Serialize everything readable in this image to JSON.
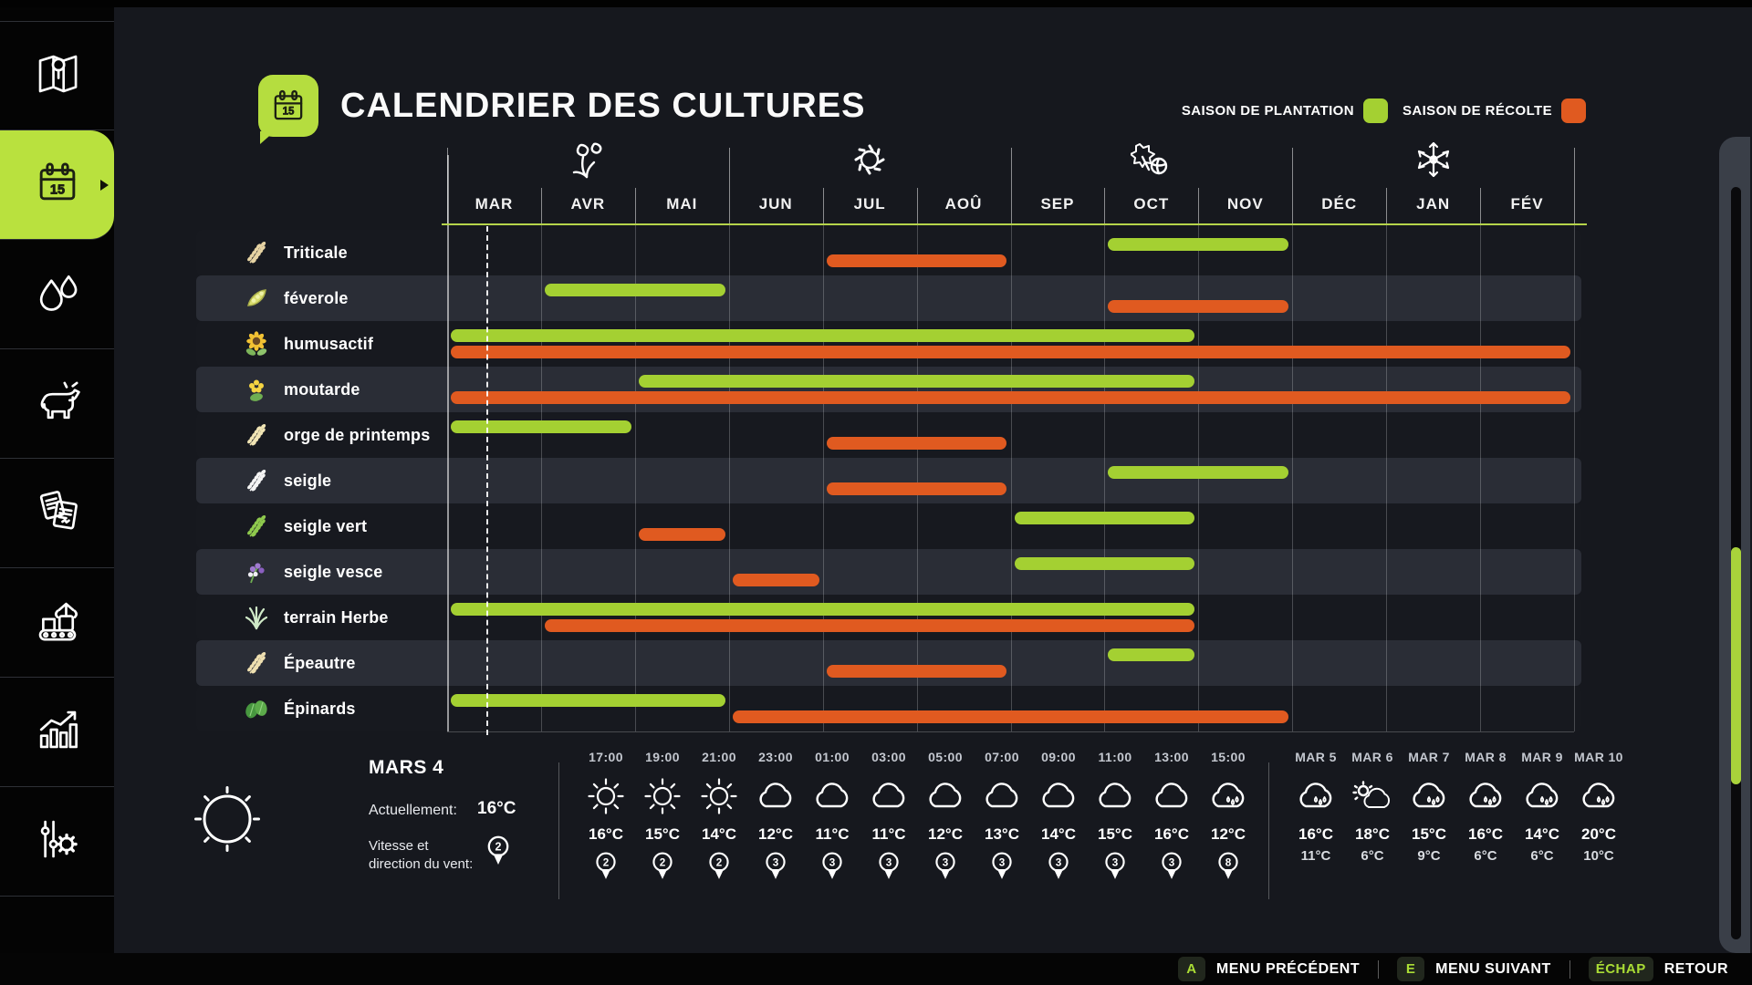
{
  "header": {
    "title": "CALENDRIER DES CULTURES",
    "legend": [
      {
        "name": "planting-season",
        "label": "SAISON DE PLANTATION",
        "color": "#a4d032"
      },
      {
        "name": "harvest-season",
        "label": "SAISON DE RÉCOLTE",
        "color": "#e05a20"
      }
    ]
  },
  "sidebar": {
    "items": [
      {
        "name": "map",
        "icon": "map-icon",
        "active": false
      },
      {
        "name": "crop-calendar",
        "icon": "calendar-icon",
        "active": true
      },
      {
        "name": "precipitation",
        "icon": "water-drops-icon",
        "active": false
      },
      {
        "name": "animals",
        "icon": "cow-icon",
        "active": false
      },
      {
        "name": "contracts",
        "icon": "contracts-icon",
        "active": false
      },
      {
        "name": "production",
        "icon": "production-icon",
        "active": false
      },
      {
        "name": "statistics",
        "icon": "statistics-icon",
        "active": false
      },
      {
        "name": "settings",
        "icon": "sliders-gear-icon",
        "active": false
      }
    ]
  },
  "chart_data": {
    "type": "gantt",
    "title": "CALENDRIER DES CULTURES",
    "months": [
      "MAR",
      "AVR",
      "MAI",
      "JUN",
      "JUL",
      "AOÛ",
      "SEP",
      "OCT",
      "NOV",
      "DÉC",
      "JAN",
      "FÉV"
    ],
    "seasons": [
      {
        "icon": "spring-flowers-icon",
        "month": 2
      },
      {
        "icon": "summer-sun-icon",
        "month": 5
      },
      {
        "icon": "autumn-leaves-icon",
        "month": 8
      },
      {
        "icon": "winter-snowflake-icon",
        "month": 11
      }
    ],
    "current_date_marker": {
      "month": 1,
      "fraction": 0.42
    },
    "plant_color": "#a4d032",
    "harvest_color": "#e05a20",
    "crops": [
      {
        "name": "Triticale",
        "icon": "wheat",
        "icon_color": "#e6d3a3",
        "plant": [
          8,
          9
        ],
        "harvest": [
          5,
          6
        ]
      },
      {
        "name": "féverole",
        "icon": "bean-pod",
        "icon_color": "#d9dd6e",
        "plant": [
          2,
          3
        ],
        "harvest": [
          8,
          9
        ]
      },
      {
        "name": "humusactif",
        "icon": "sunflower",
        "icon_color": "#f2c233",
        "plant": [
          1,
          8
        ],
        "harvest": [
          1,
          12
        ]
      },
      {
        "name": "moutarde",
        "icon": "mustard-flower",
        "icon_color": "#f5d442",
        "plant": [
          3,
          8
        ],
        "harvest": [
          1,
          12
        ]
      },
      {
        "name": "orge de printemps",
        "icon": "wheat",
        "icon_color": "#f0e4b4",
        "plant": [
          1,
          2
        ],
        "harvest": [
          5,
          6
        ]
      },
      {
        "name": "seigle",
        "icon": "wheat",
        "icon_color": "#f4f4f4",
        "plant": [
          8,
          9
        ],
        "harvest": [
          5,
          6
        ]
      },
      {
        "name": "seigle vert",
        "icon": "wheat",
        "icon_color": "#8ec94d",
        "plant": [
          7,
          8
        ],
        "harvest": [
          3,
          3
        ]
      },
      {
        "name": "seigle vesce",
        "icon": "vetch-flower",
        "icon_color": "#a07ad0",
        "plant": [
          7,
          8
        ],
        "harvest": [
          4,
          4
        ]
      },
      {
        "name": "terrain Herbe",
        "icon": "grass",
        "icon_color": "#cfe9c7",
        "plant": [
          1,
          8
        ],
        "harvest": [
          2,
          8
        ]
      },
      {
        "name": "Épeautre",
        "icon": "wheat",
        "icon_color": "#eedfb0",
        "plant": [
          8,
          8
        ],
        "harvest": [
          5,
          6
        ]
      },
      {
        "name": "Épinards",
        "icon": "spinach-leaves",
        "icon_color": "#47973f",
        "plant": [
          1,
          3
        ],
        "harvest": [
          4,
          9
        ]
      }
    ]
  },
  "weather": {
    "current": {
      "date": "MARS 4",
      "icon": "sun-icon",
      "now_label": "Actuellement:",
      "temperature": "16°C",
      "wind_label_line1": "Vitesse et",
      "wind_label_line2": "direction du vent:",
      "wind": "2"
    },
    "hourly": [
      {
        "time": "17:00",
        "icon": "sun",
        "temp": "16°C",
        "wind": "2"
      },
      {
        "time": "19:00",
        "icon": "sun",
        "temp": "15°C",
        "wind": "2"
      },
      {
        "time": "21:00",
        "icon": "sun",
        "temp": "14°C",
        "wind": "2"
      },
      {
        "time": "23:00",
        "icon": "cloud",
        "temp": "12°C",
        "wind": "3"
      },
      {
        "time": "01:00",
        "icon": "cloud",
        "temp": "11°C",
        "wind": "3"
      },
      {
        "time": "03:00",
        "icon": "cloud",
        "temp": "11°C",
        "wind": "3"
      },
      {
        "time": "05:00",
        "icon": "cloud",
        "temp": "12°C",
        "wind": "3"
      },
      {
        "time": "07:00",
        "icon": "cloud",
        "temp": "13°C",
        "wind": "3"
      },
      {
        "time": "09:00",
        "icon": "cloud",
        "temp": "14°C",
        "wind": "3"
      },
      {
        "time": "11:00",
        "icon": "cloud",
        "temp": "15°C",
        "wind": "3"
      },
      {
        "time": "13:00",
        "icon": "cloud",
        "temp": "16°C",
        "wind": "3"
      },
      {
        "time": "15:00",
        "icon": "rain",
        "temp": "12°C",
        "wind": "8"
      }
    ],
    "daily": [
      {
        "date": "MAR 5",
        "icon": "rain",
        "high": "16°C",
        "low": "11°C"
      },
      {
        "date": "MAR 6",
        "icon": "partly-sunny",
        "high": "18°C",
        "low": "6°C"
      },
      {
        "date": "MAR 7",
        "icon": "rain",
        "high": "15°C",
        "low": "9°C"
      },
      {
        "date": "MAR 8",
        "icon": "rain",
        "high": "16°C",
        "low": "6°C"
      },
      {
        "date": "MAR 9",
        "icon": "rain",
        "high": "14°C",
        "low": "6°C"
      },
      {
        "date": "MAR 10",
        "icon": "rain",
        "high": "20°C",
        "low": "10°C"
      }
    ]
  },
  "footer": {
    "shortcuts": [
      {
        "key": "A",
        "label": "MENU PRÉCÉDENT"
      },
      {
        "key": "E",
        "label": "MENU SUIVANT"
      },
      {
        "key": "ÉCHAP",
        "label": "RETOUR"
      }
    ]
  }
}
